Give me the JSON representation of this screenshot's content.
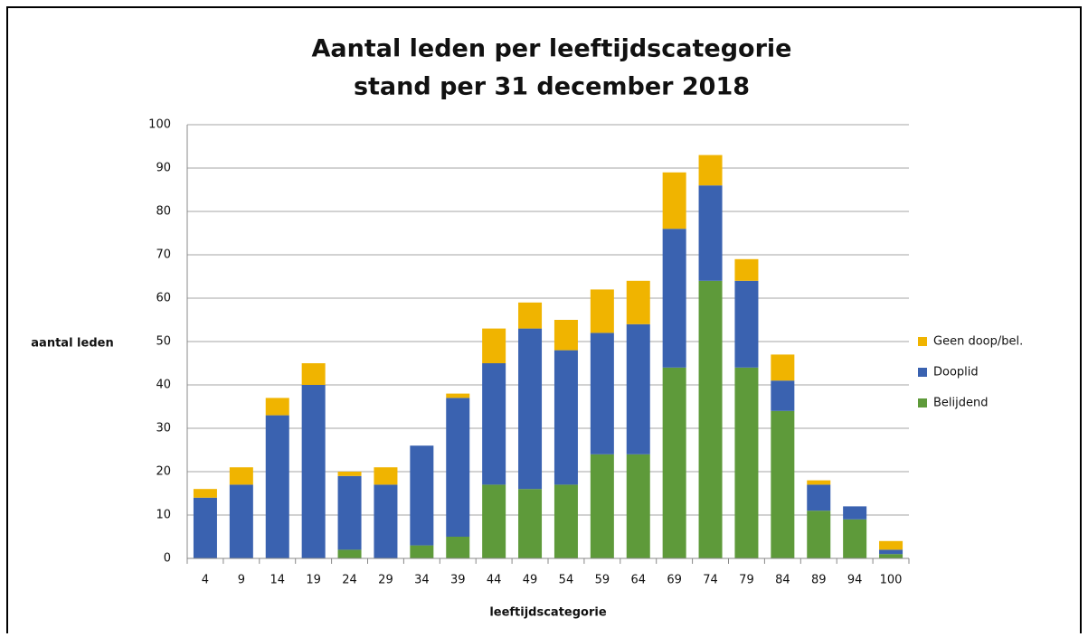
{
  "chart_data": {
    "type": "stacked_bar",
    "title": "Aantal leden per leeftijdscategorie",
    "subtitle": "stand per 31 december 2018",
    "y_label": "aantal leden",
    "x_label": "leeftijdscategorie",
    "categories": [
      "4",
      "9",
      "14",
      "19",
      "24",
      "29",
      "34",
      "39",
      "44",
      "49",
      "54",
      "59",
      "64",
      "69",
      "74",
      "79",
      "84",
      "89",
      "94",
      "100"
    ],
    "series": [
      {
        "name": "Belijdend",
        "color": "#5e9a3a",
        "values": [
          0,
          0,
          0,
          0,
          2,
          0,
          3,
          5,
          17,
          16,
          17,
          24,
          24,
          44,
          64,
          44,
          34,
          11,
          9,
          1
        ]
      },
      {
        "name": "Dooplid",
        "color": "#3a62b0",
        "values": [
          14,
          17,
          33,
          40,
          17,
          17,
          23,
          32,
          28,
          37,
          31,
          28,
          30,
          32,
          22,
          20,
          7,
          6,
          3,
          1
        ]
      },
      {
        "name": "Geen doop/bel.",
        "color": "#f0b400",
        "values": [
          2,
          4,
          4,
          5,
          1,
          4,
          0,
          1,
          8,
          6,
          7,
          10,
          10,
          13,
          7,
          5,
          6,
          1,
          0,
          2
        ]
      }
    ],
    "ylim": [
      0,
      100
    ],
    "yticks": [
      0,
      10,
      20,
      30,
      40,
      50,
      60,
      70,
      80,
      90,
      100
    ],
    "grid": true,
    "legend": "right"
  }
}
